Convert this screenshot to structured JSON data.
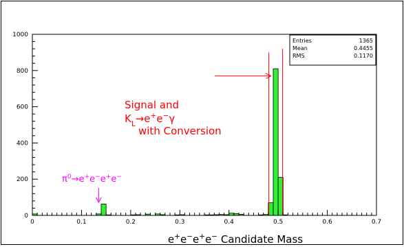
{
  "chart_data": {
    "type": "bar",
    "xlabel_parts": [
      "e",
      "+",
      "e",
      "−",
      "e",
      "+",
      "e",
      "−",
      " Candidate Mass"
    ],
    "ylabel": "",
    "xlim": [
      0,
      0.7
    ],
    "ylim": [
      0,
      1000
    ],
    "bin_width": 0.01,
    "x_ticks": [
      0,
      0.1,
      0.2,
      0.3,
      0.4,
      0.5,
      0.6,
      0.7
    ],
    "x_tick_labels": [
      "0",
      "0.1",
      "0.2",
      "0.3",
      "0.4",
      "0.5",
      "0.6",
      "0.7"
    ],
    "y_ticks": [
      0,
      200,
      400,
      600,
      800,
      1000
    ],
    "y_tick_labels": [
      "0",
      "200",
      "400",
      "600",
      "800",
      "1000"
    ],
    "bins": [
      {
        "x": 0.0,
        "value": 8
      },
      {
        "x": 0.13,
        "value": 8
      },
      {
        "x": 0.14,
        "value": 63
      },
      {
        "x": 0.15,
        "value": 3
      },
      {
        "x": 0.2,
        "value": 3
      },
      {
        "x": 0.21,
        "value": 4
      },
      {
        "x": 0.23,
        "value": 7
      },
      {
        "x": 0.25,
        "value": 8
      },
      {
        "x": 0.26,
        "value": 4
      },
      {
        "x": 0.29,
        "value": 3
      },
      {
        "x": 0.3,
        "value": 4
      },
      {
        "x": 0.35,
        "value": 3
      },
      {
        "x": 0.36,
        "value": 3
      },
      {
        "x": 0.37,
        "value": 4
      },
      {
        "x": 0.38,
        "value": 5
      },
      {
        "x": 0.39,
        "value": 4
      },
      {
        "x": 0.4,
        "value": 12
      },
      {
        "x": 0.41,
        "value": 10
      },
      {
        "x": 0.42,
        "value": 6
      },
      {
        "x": 0.46,
        "value": 3
      },
      {
        "x": 0.47,
        "value": 5
      },
      {
        "x": 0.48,
        "value": 70
      },
      {
        "x": 0.49,
        "value": 810
      },
      {
        "x": 0.5,
        "value": 210
      },
      {
        "x": 0.51,
        "value": 3
      }
    ],
    "bar_fill": "#33ee33",
    "bar_stroke": "#000000",
    "cut_lines": {
      "color": "#ff0000",
      "x": [
        0.481,
        0.509
      ],
      "top": [
        900,
        920
      ]
    },
    "stats_box": {
      "rows": [
        {
          "label": "Entries",
          "value": "1365"
        },
        {
          "label": "Mean",
          "value": "0.4455"
        },
        {
          "label": "RMS",
          "value": "0.1170"
        }
      ]
    },
    "annotations": [
      {
        "id": "signal",
        "color": "#ff0000",
        "line1": "Signal and",
        "line2_parts": [
          "K",
          "L",
          "→",
          "e",
          "+",
          "e",
          "−",
          "γ"
        ],
        "line3": "with Conversion",
        "arrow_to": {
          "x": 0.487,
          "y": 770
        }
      },
      {
        "id": "pi0",
        "color": "#ff00ff",
        "text_parts": [
          "π",
          "0",
          "→",
          "e",
          "+",
          "e",
          "−",
          "e",
          "+",
          "e",
          "−"
        ],
        "arrow_to": {
          "x": 0.135,
          "y": 120
        }
      }
    ]
  }
}
